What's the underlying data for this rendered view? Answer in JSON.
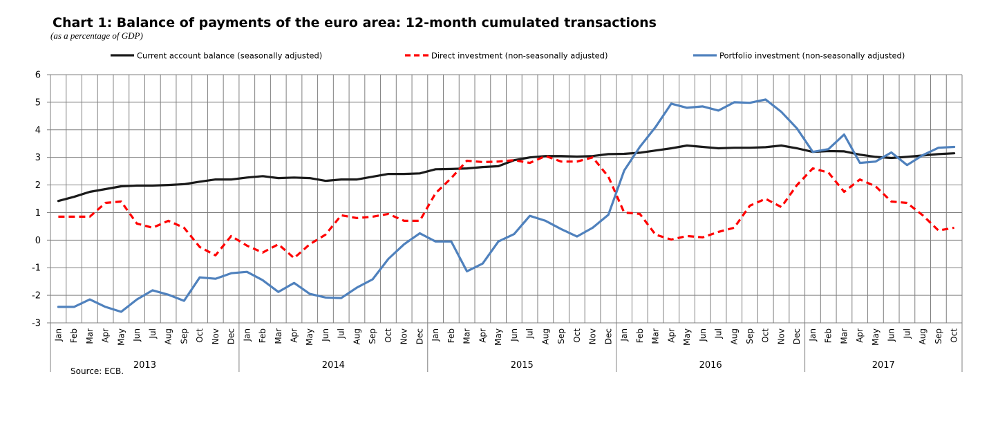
{
  "title": "Chart 1: Balance of payments of the euro area: 12-month cumulated transactions",
  "subtitle": "(as a percentage of GDP)",
  "source": "Source: ECB.",
  "chart_data": {
    "type": "line",
    "title": "Chart 1: Balance of payments of the euro area: 12-month cumulated transactions",
    "ylim": [
      -3,
      6
    ],
    "yticks": [
      "6",
      "5",
      "4",
      "3",
      "2",
      "1",
      "0",
      "-1",
      "-2",
      "-3"
    ],
    "grid": true,
    "legend_position": "top",
    "months": [
      "Jan",
      "Feb",
      "Mar",
      "Apr",
      "May",
      "Jun",
      "Jul",
      "Aug",
      "Sep",
      "Oct",
      "Nov",
      "Dec",
      "Jan",
      "Feb",
      "Mar",
      "Apr",
      "May",
      "Jun",
      "Jul",
      "Aug",
      "Sep",
      "Oct",
      "Nov",
      "Dec",
      "Jan",
      "Feb",
      "Mar",
      "Apr",
      "May",
      "Jun",
      "Jul",
      "Aug",
      "Sep",
      "Oct",
      "Nov",
      "Dec",
      "Jan",
      "Feb",
      "Mar",
      "Apr",
      "May",
      "Jun",
      "Jul",
      "Aug",
      "Sep",
      "Oct",
      "Nov",
      "Dec",
      "Jan",
      "Feb",
      "Mar",
      "Apr",
      "May",
      "Jun",
      "Jul",
      "Aug",
      "Sep",
      "Oct"
    ],
    "years": [
      {
        "label": "2013",
        "count": 12
      },
      {
        "label": "2014",
        "count": 12
      },
      {
        "label": "2015",
        "count": 12
      },
      {
        "label": "2016",
        "count": 12
      },
      {
        "label": "2017",
        "count": 10
      }
    ],
    "series": [
      {
        "name": "Current account balance (seasonally adjusted)",
        "color": "#1a1a1a",
        "dash": false,
        "values": [
          1.42,
          1.57,
          1.75,
          1.85,
          1.95,
          1.98,
          1.98,
          2.0,
          2.03,
          2.12,
          2.2,
          2.2,
          2.27,
          2.32,
          2.25,
          2.27,
          2.25,
          2.15,
          2.2,
          2.2,
          2.3,
          2.4,
          2.4,
          2.42,
          2.57,
          2.58,
          2.6,
          2.65,
          2.68,
          2.9,
          3.0,
          3.05,
          3.05,
          3.03,
          3.05,
          3.12,
          3.13,
          3.17,
          3.25,
          3.33,
          3.43,
          3.38,
          3.33,
          3.35,
          3.35,
          3.37,
          3.43,
          3.33,
          3.2,
          3.23,
          3.22,
          3.1,
          3.02,
          2.98,
          3.02,
          3.07,
          3.12,
          3.15
        ]
      },
      {
        "name": "Direct investment (non-seasonally adjusted)",
        "color": "#ff0000",
        "dash": true,
        "values": [
          0.85,
          0.85,
          0.85,
          1.35,
          1.4,
          0.6,
          0.45,
          0.7,
          0.45,
          -0.25,
          -0.55,
          0.15,
          -0.2,
          -0.45,
          -0.15,
          -0.65,
          -0.15,
          0.2,
          0.9,
          0.8,
          0.85,
          0.95,
          0.7,
          0.7,
          1.7,
          2.25,
          2.88,
          2.83,
          2.85,
          2.9,
          2.8,
          3.05,
          2.85,
          2.85,
          3.0,
          2.3,
          1.0,
          0.95,
          0.2,
          0.02,
          0.15,
          0.1,
          0.3,
          0.45,
          1.25,
          1.5,
          1.2,
          2.0,
          2.6,
          2.45,
          1.75,
          2.2,
          1.95,
          1.4,
          1.35,
          0.9,
          0.35,
          0.45
        ]
      },
      {
        "name": "Portfolio investment (non-seasonally adjusted)",
        "color": "#4f81bd",
        "dash": false,
        "values": [
          -2.42,
          -2.42,
          -2.15,
          -2.42,
          -2.6,
          -2.15,
          -1.82,
          -1.98,
          -2.2,
          -1.35,
          -1.4,
          -1.2,
          -1.15,
          -1.45,
          -1.88,
          -1.55,
          -1.95,
          -2.08,
          -2.1,
          -1.72,
          -1.42,
          -0.68,
          -0.15,
          0.25,
          -0.05,
          -0.05,
          -1.13,
          -0.85,
          -0.05,
          0.22,
          0.88,
          0.7,
          0.4,
          0.13,
          0.45,
          0.92,
          2.52,
          3.38,
          4.1,
          4.95,
          4.8,
          4.85,
          4.7,
          5.0,
          4.98,
          5.1,
          4.65,
          4.05,
          3.2,
          3.3,
          3.83,
          2.8,
          2.85,
          3.18,
          2.72,
          3.08,
          3.35,
          3.38
        ]
      }
    ]
  }
}
